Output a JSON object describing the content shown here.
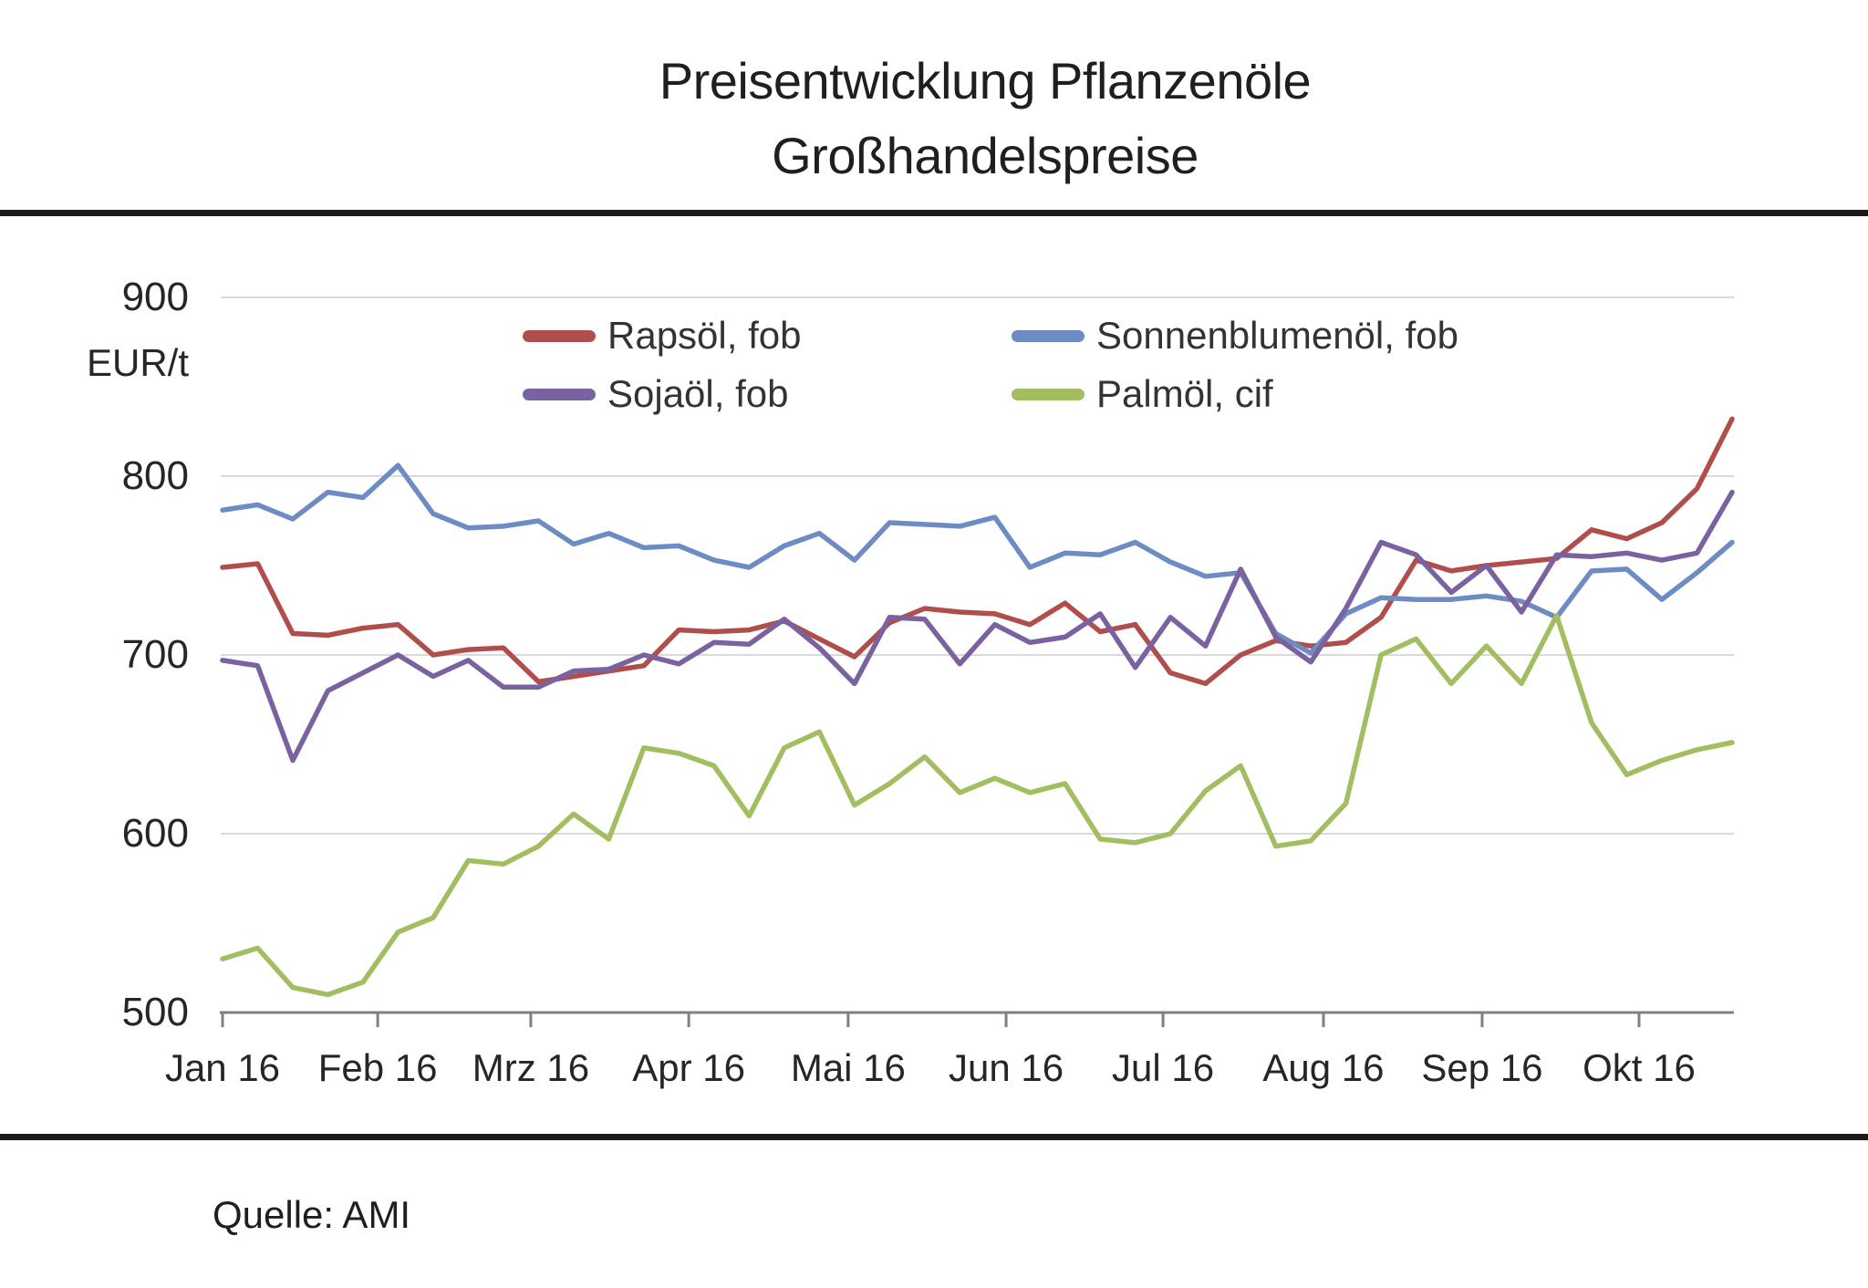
{
  "title": {
    "line1": "Preisentwicklung Pflanzenöle",
    "line2": "Großhandelspreise"
  },
  "source": "Quelle: AMI",
  "chart_data": {
    "type": "line",
    "title": "Preisentwicklung Pflanzenöle Großhandelspreise",
    "ylabel": "EUR/t",
    "ylim": [
      500,
      900
    ],
    "y_ticks": [
      900,
      800,
      700,
      600,
      500
    ],
    "x_ticks": [
      {
        "label": "Jan 16",
        "index": 0
      },
      {
        "label": "Feb 16",
        "index": 4.42
      },
      {
        "label": "Mrz 16",
        "index": 8.78
      },
      {
        "label": "Apr 16",
        "index": 13.28
      },
      {
        "label": "Mai 16",
        "index": 17.82
      },
      {
        "label": "Jun 16",
        "index": 22.32
      },
      {
        "label": "Jul 16",
        "index": 26.79
      },
      {
        "label": "Aug 16",
        "index": 31.36
      },
      {
        "label": "Sep 16",
        "index": 35.88
      },
      {
        "label": "Okt 16",
        "index": 40.35
      }
    ],
    "n_points": 44,
    "grid": true,
    "grid_color": "#D9D9D9",
    "axis_color": "#808080",
    "legend_position": "top-inside-two-columns",
    "series": [
      {
        "name": "Rapsöl, fob",
        "color": "#B04E4B",
        "values": [
          749,
          751,
          712,
          711,
          715,
          717,
          700,
          703,
          704,
          685,
          688,
          691,
          694,
          714,
          713,
          714,
          719,
          709,
          699,
          718,
          726,
          724,
          723,
          717,
          729,
          713,
          717,
          690,
          684,
          700,
          708,
          705,
          707,
          721,
          753,
          747,
          750,
          752,
          754,
          770,
          765,
          774,
          793,
          832
        ]
      },
      {
        "name": "Sonnenblumenöl, fob",
        "color": "#6D8CC4",
        "values": [
          781,
          784,
          776,
          791,
          788,
          806,
          779,
          771,
          772,
          775,
          762,
          768,
          760,
          761,
          753,
          749,
          761,
          768,
          753,
          774,
          773,
          772,
          777,
          749,
          757,
          756,
          763,
          752,
          744,
          746,
          712,
          701,
          723,
          732,
          731,
          731,
          733,
          730,
          721,
          747,
          748,
          731,
          746,
          763
        ]
      },
      {
        "name": "Sojaöl, fob",
        "color": "#7A62A0",
        "values": [
          697,
          694,
          641,
          680,
          690,
          700,
          688,
          697,
          682,
          682,
          691,
          692,
          700,
          695,
          707,
          706,
          720,
          704,
          684,
          721,
          720,
          695,
          717,
          707,
          710,
          723,
          693,
          721,
          705,
          748,
          710,
          696,
          726,
          763,
          756,
          735,
          750,
          724,
          756,
          755,
          757,
          753,
          757,
          791
        ]
      },
      {
        "name": "Palmöl, cif",
        "color": "#A2BE60",
        "values": [
          530,
          536,
          514,
          510,
          517,
          545,
          553,
          585,
          583,
          593,
          611,
          597,
          648,
          645,
          638,
          610,
          648,
          657,
          616,
          628,
          643,
          623,
          631,
          623,
          628,
          597,
          595,
          600,
          624,
          638,
          593,
          596,
          617,
          700,
          709,
          684,
          705,
          684,
          722,
          662,
          633,
          641,
          647,
          651
        ]
      }
    ]
  }
}
